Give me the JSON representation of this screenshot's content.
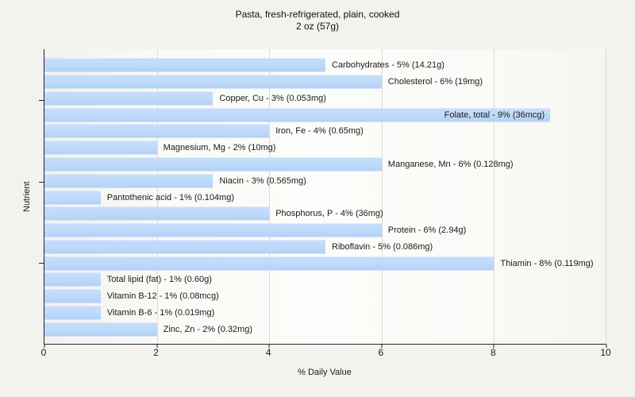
{
  "title": {
    "line1": "Pasta, fresh-refrigerated, plain, cooked",
    "line2": "2 oz (57g)"
  },
  "axes": {
    "x_label": "% Daily Value",
    "y_label": "Nutrient",
    "x_ticks": [
      "0",
      "2",
      "4",
      "6",
      "8",
      "10"
    ],
    "x_min": 0,
    "x_max": 10
  },
  "colors": {
    "bar_fill": "#bed9fa",
    "page_background": "#f3f2ef",
    "gridline": "#dadad6",
    "axis_line": "#222222",
    "text": "#1a1a1a"
  },
  "chart_data": {
    "type": "bar",
    "orientation": "horizontal",
    "title": "Pasta, fresh-refrigerated, plain, cooked 2 oz (57g)",
    "xlabel": "% Daily Value",
    "ylabel": "Nutrient",
    "xlim": [
      0,
      10
    ],
    "grid": true,
    "x_tick_interval": 2,
    "categories": [
      "Carbohydrates",
      "Cholesterol",
      "Copper, Cu",
      "Folate, total",
      "Iron, Fe",
      "Magnesium, Mg",
      "Manganese, Mn",
      "Niacin",
      "Pantothenic acid",
      "Phosphorus, P",
      "Protein",
      "Riboflavin",
      "Thiamin",
      "Total lipid (fat)",
      "Vitamin B-12",
      "Vitamin B-6",
      "Zinc, Zn"
    ],
    "values": [
      5,
      6,
      3,
      9,
      4,
      2,
      6,
      3,
      1,
      4,
      6,
      5,
      8,
      1,
      1,
      1,
      2
    ],
    "bars": [
      {
        "nutrient": "Carbohydrates",
        "percent": 5,
        "amount": "14.21g",
        "label": "Carbohydrates - 5% (14.21g)",
        "inside": false
      },
      {
        "nutrient": "Cholesterol",
        "percent": 6,
        "amount": "19mg",
        "label": "Cholesterol - 6% (19mg)",
        "inside": false
      },
      {
        "nutrient": "Copper, Cu",
        "percent": 3,
        "amount": "0.053mg",
        "label": "Copper, Cu - 3% (0.053mg)",
        "inside": false
      },
      {
        "nutrient": "Folate, total",
        "percent": 9,
        "amount": "36mcg",
        "label": "Folate, total - 9% (36mcg)",
        "inside": true
      },
      {
        "nutrient": "Iron, Fe",
        "percent": 4,
        "amount": "0.65mg",
        "label": "Iron, Fe - 4% (0.65mg)",
        "inside": false
      },
      {
        "nutrient": "Magnesium, Mg",
        "percent": 2,
        "amount": "10mg",
        "label": "Magnesium, Mg - 2% (10mg)",
        "inside": false
      },
      {
        "nutrient": "Manganese, Mn",
        "percent": 6,
        "amount": "0.128mg",
        "label": "Manganese, Mn - 6% (0.128mg)",
        "inside": false
      },
      {
        "nutrient": "Niacin",
        "percent": 3,
        "amount": "0.565mg",
        "label": "Niacin - 3% (0.565mg)",
        "inside": false
      },
      {
        "nutrient": "Pantothenic acid",
        "percent": 1,
        "amount": "0.104mg",
        "label": "Pantothenic acid - 1% (0.104mg)",
        "inside": false
      },
      {
        "nutrient": "Phosphorus, P",
        "percent": 4,
        "amount": "36mg",
        "label": "Phosphorus, P - 4% (36mg)",
        "inside": false
      },
      {
        "nutrient": "Protein",
        "percent": 6,
        "amount": "2.94g",
        "label": "Protein - 6% (2.94g)",
        "inside": false
      },
      {
        "nutrient": "Riboflavin",
        "percent": 5,
        "amount": "0.086mg",
        "label": "Riboflavin - 5% (0.086mg)",
        "inside": false
      },
      {
        "nutrient": "Thiamin",
        "percent": 8,
        "amount": "0.119mg",
        "label": "Thiamin - 8% (0.119mg)",
        "inside": false
      },
      {
        "nutrient": "Total lipid (fat)",
        "percent": 1,
        "amount": "0.60g",
        "label": "Total lipid (fat) - 1% (0.60g)",
        "inside": false
      },
      {
        "nutrient": "Vitamin B-12",
        "percent": 1,
        "amount": "0.08mcg",
        "label": "Vitamin B-12 - 1% (0.08mcg)",
        "inside": false
      },
      {
        "nutrient": "Vitamin B-6",
        "percent": 1,
        "amount": "0.019mg",
        "label": "Vitamin B-6 - 1% (0.019mg)",
        "inside": false
      },
      {
        "nutrient": "Zinc, Zn",
        "percent": 2,
        "amount": "0.32mg",
        "label": "Zinc, Zn - 2% (0.32mg)",
        "inside": false
      }
    ]
  }
}
